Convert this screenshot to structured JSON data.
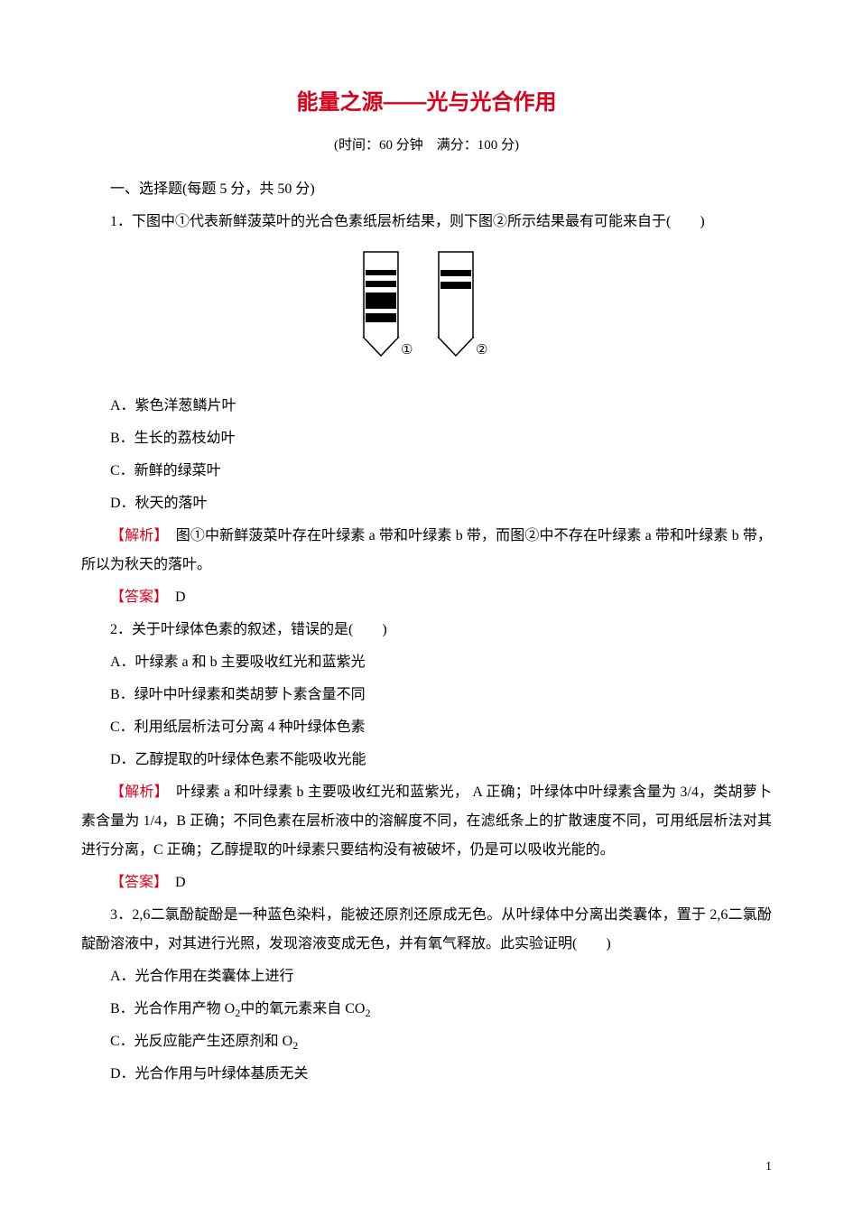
{
  "title": "能量之源——光与光合作用",
  "subtitle": "(时间：60 分钟　满分：100 分)",
  "section1_heading": "一、选择题(每题 5 分，共 50 分)",
  "q1": {
    "text": "1．下图中①代表新鲜菠菜叶的光合色素纸层析结果，则下图②所示结果最有可能来自于(　　)",
    "optA": "A．紫色洋葱鳞片叶",
    "optB": "B．生长的荔枝幼叶",
    "optC": "C．新鲜的绿菜叶",
    "optD": "D．秋天的落叶",
    "analysis_label": "【解析】",
    "analysis": "　图①中新鲜菠菜叶存在叶绿素 a 带和叶绿素 b 带，而图②中不存在叶绿素 a 带和叶绿素 b 带，所以为秋天的落叶。",
    "answer_label": "【答案】",
    "answer": "　D"
  },
  "q2": {
    "text": "2．关于叶绿体色素的叙述，错误的是(　　)",
    "optA": "A．叶绿素 a 和 b 主要吸收红光和蓝紫光",
    "optB": "B．绿叶中叶绿素和类胡萝卜素含量不同",
    "optC": "C．利用纸层析法可分离 4 种叶绿体色素",
    "optD": "D．乙醇提取的叶绿体色素不能吸收光能",
    "analysis_label": "【解析】",
    "analysis": "　叶绿素 a 和叶绿素 b 主要吸收红光和蓝紫光， A 正确；叶绿体中叶绿素含量为 3/4，类胡萝卜素含量为 1/4，B 正确；不同色素在层析液中的溶解度不同，在滤纸条上的扩散速度不同，可用纸层析法对其进行分离，C 正确；乙醇提取的叶绿素只要结构没有被破坏，仍是可以吸收光能的。",
    "answer_label": "【答案】",
    "answer": "　D"
  },
  "q3": {
    "text": "3．2,6二氯酚靛酚是一种蓝色染料，能被还原剂还原成无色。从叶绿体中分离出类囊体，置于 2,6二氯酚靛酚溶液中，对其进行光照，发现溶液变成无色，并有氧气释放。此实验证明(　　)",
    "optA": "A．光合作用在类囊体上进行",
    "optB_prefix": "B．光合作用产物 O",
    "optB_sub1": "2",
    "optB_mid": "中的氧元素来自 CO",
    "optB_sub2": "2",
    "optC_prefix": "C．光反应能产生还原剂和 O",
    "optC_sub": "2",
    "optD": "D．光合作用与叶绿体基质无关"
  },
  "diagram": {
    "label1": "①",
    "label2": "②",
    "strip1_bands": [
      {
        "y": 20,
        "h": 6,
        "color": "#000000"
      },
      {
        "y": 32,
        "h": 7,
        "color": "#000000"
      },
      {
        "y": 45,
        "h": 18,
        "color": "#000000"
      },
      {
        "y": 68,
        "h": 10,
        "color": "#000000"
      }
    ],
    "strip2_bands": [
      {
        "y": 20,
        "h": 7,
        "color": "#000000"
      },
      {
        "y": 33,
        "h": 8,
        "color": "#000000"
      }
    ],
    "strip_width": 38,
    "strip_height": 120,
    "gap": 45
  },
  "page_number": "1"
}
